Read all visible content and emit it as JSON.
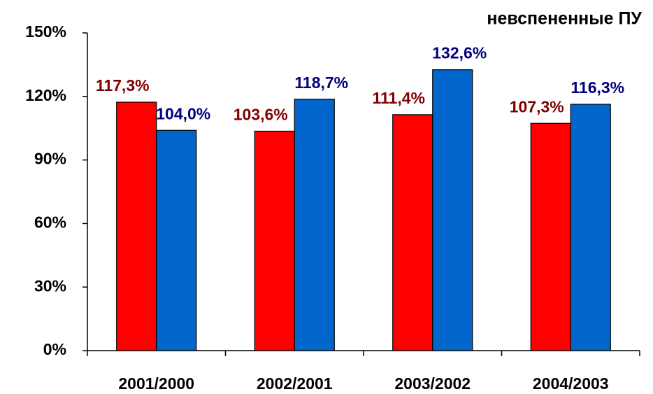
{
  "chart_data": {
    "type": "bar",
    "title": "невспененные ПУ",
    "categories": [
      "2001/2000",
      "2002/2001",
      "2003/2002",
      "2004/2003"
    ],
    "series": [
      {
        "color": "#ff0000",
        "label_color": "#800000",
        "values": [
          117.3,
          103.6,
          111.4,
          107.3
        ],
        "value_labels": [
          "117,3%",
          "103,6%",
          "111,4%",
          "107,3%"
        ]
      },
      {
        "color": "#0066cc",
        "label_color": "#000080",
        "values": [
          104.0,
          118.7,
          132.6,
          116.3
        ],
        "value_labels": [
          "104,0%",
          "118,7%",
          "132,6%",
          "116,3%"
        ]
      }
    ],
    "ylim": [
      0,
      150
    ],
    "yticks": [
      {
        "value": 0,
        "label": "0%"
      },
      {
        "value": 30,
        "label": "30%"
      },
      {
        "value": 60,
        "label": "60%"
      },
      {
        "value": 90,
        "label": "90%"
      },
      {
        "value": 120,
        "label": "120%"
      },
      {
        "value": 150,
        "label": "150%"
      }
    ],
    "grid": false
  }
}
